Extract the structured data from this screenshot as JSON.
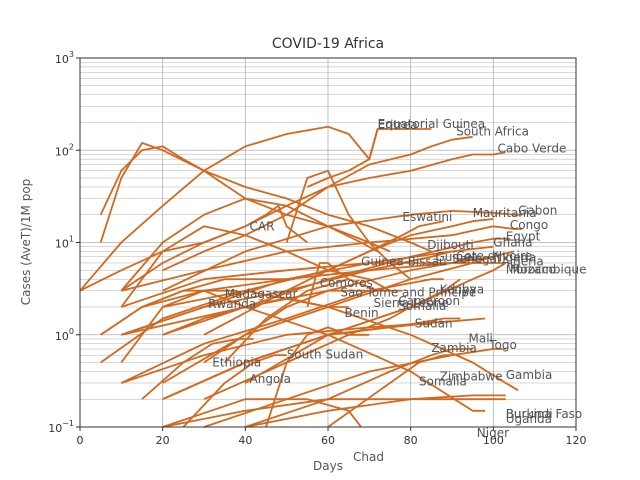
{
  "chart_data": {
    "type": "line",
    "title": "COVID-19  Africa",
    "xlabel": "Days",
    "ylabel": "Cases (AveT)/1M pop",
    "xlim": [
      0,
      120
    ],
    "ylim_log10": [
      -1,
      3
    ],
    "y_scale": "log",
    "grid": true,
    "line_color": "#d2691e",
    "x_ticks": [
      "0",
      "20",
      "40",
      "60",
      "80",
      "100",
      "120"
    ],
    "y_ticks": [
      {
        "base": "10",
        "exp": "−1"
      },
      {
        "base": "10",
        "exp": "0"
      },
      {
        "base": "10",
        "exp": "1"
      },
      {
        "base": "10",
        "exp": "2"
      },
      {
        "base": "10",
        "exp": "3"
      }
    ],
    "series": [
      {
        "name": "Equatorial Guinea",
        "x": [
          55,
          60,
          65,
          70,
          72,
          75,
          80,
          85
        ],
        "y": [
          40,
          50,
          60,
          80,
          170,
          170,
          170,
          170
        ]
      },
      {
        "name": "Eritrea",
        "x": [
          0,
          10,
          20,
          30,
          40,
          50,
          60,
          65,
          70,
          72
        ],
        "y": [
          3,
          10,
          25,
          60,
          110,
          150,
          180,
          150,
          80,
          170
        ]
      },
      {
        "name": "South Africa",
        "x": [
          0,
          10,
          20,
          30,
          40,
          50,
          60,
          70,
          80,
          85,
          90,
          95
        ],
        "y": [
          3,
          5,
          8,
          10,
          15,
          25,
          40,
          70,
          90,
          110,
          130,
          140
        ]
      },
      {
        "name": "Cabo Verde",
        "x": [
          20,
          30,
          40,
          50,
          60,
          70,
          80,
          90,
          95,
          100,
          103
        ],
        "y": [
          5,
          8,
          12,
          20,
          40,
          50,
          60,
          80,
          90,
          90,
          95
        ]
      },
      {
        "name": "Gabon",
        "x": [
          20,
          40,
          60,
          80,
          90,
          100,
          105,
          107
        ],
        "y": [
          3,
          8,
          15,
          20,
          22,
          21,
          20,
          20
        ]
      },
      {
        "name": "Mauritania",
        "x": [
          30,
          50,
          60,
          70,
          80,
          90,
          95,
          100
        ],
        "y": [
          1,
          3,
          5,
          8,
          12,
          15,
          17,
          18
        ]
      },
      {
        "name": "Congo",
        "x": [
          10,
          30,
          50,
          70,
          90,
          100,
          105,
          107
        ],
        "y": [
          3,
          5,
          8,
          10,
          12,
          15,
          14,
          14
        ]
      },
      {
        "name": "Eswatini",
        "x": [
          20,
          40,
          60,
          70,
          78,
          82,
          88
        ],
        "y": [
          2,
          3,
          5,
          8,
          12,
          15,
          17
        ]
      },
      {
        "name": "Egypt",
        "x": [
          10,
          40,
          60,
          80,
          95,
          100,
          104
        ],
        "y": [
          1,
          2,
          4,
          7,
          10,
          11,
          11
        ]
      },
      {
        "name": "CAR",
        "x": [
          10,
          20,
          30,
          40,
          45,
          48,
          50,
          55
        ],
        "y": [
          3,
          6,
          10,
          15,
          20,
          25,
          15,
          10
        ]
      },
      {
        "name": "Djibouti",
        "x": [
          5,
          10,
          15,
          20,
          25,
          30,
          40,
          50,
          60,
          70,
          80,
          85
        ],
        "y": [
          20,
          60,
          100,
          110,
          80,
          60,
          40,
          30,
          20,
          15,
          10,
          8
        ]
      },
      {
        "name": "Ghana",
        "x": [
          10,
          30,
          50,
          70,
          90,
          100
        ],
        "y": [
          1,
          2,
          4,
          6,
          8,
          9
        ]
      },
      {
        "name": "Cote d'Ivoire",
        "x": [
          20,
          40,
          60,
          80,
          90,
          95
        ],
        "y": [
          1,
          2,
          3,
          5,
          6,
          7
        ]
      },
      {
        "name": "Guinea-Bissau",
        "x": [
          5,
          10,
          15,
          20,
          30,
          40,
          50,
          60,
          70,
          75
        ],
        "y": [
          10,
          50,
          120,
          100,
          60,
          30,
          20,
          15,
          10,
          8
        ]
      },
      {
        "name": "Guinea",
        "x": [
          10,
          20,
          30,
          40,
          50,
          60,
          68,
          72
        ],
        "y": [
          3,
          10,
          20,
          30,
          25,
          15,
          10,
          8
        ]
      },
      {
        "name": "Senegal",
        "x": [
          10,
          30,
          50,
          70,
          85,
          90
        ],
        "y": [
          1,
          2,
          3,
          5,
          7,
          8
        ]
      },
      {
        "name": "Algeria",
        "x": [
          15,
          30,
          50,
          70,
          90,
          100,
          105
        ],
        "y": [
          2,
          3,
          4,
          5,
          6,
          7,
          8
        ]
      },
      {
        "name": "Nigeria",
        "x": [
          20,
          40,
          60,
          80,
          95,
          100
        ],
        "y": [
          0.3,
          1,
          2,
          4,
          6,
          7
        ]
      },
      {
        "name": "Morocco",
        "x": [
          10,
          30,
          50,
          70,
          90,
          100,
          103
        ],
        "y": [
          2,
          4,
          5,
          6,
          6,
          6,
          6
        ]
      },
      {
        "name": "Mozambique",
        "x": [
          40,
          60,
          80,
          95,
          100,
          103
        ],
        "y": [
          0.3,
          1,
          2,
          4,
          5,
          6
        ]
      },
      {
        "name": "Comoros",
        "x": [
          55,
          58,
          60,
          62,
          65
        ],
        "y": [
          2,
          6,
          6,
          5,
          4
        ]
      },
      {
        "name": "Madagascar",
        "x": [
          5,
          15,
          25,
          35,
          42,
          48,
          52
        ],
        "y": [
          1,
          2,
          3,
          4,
          4,
          4,
          4
        ]
      },
      {
        "name": "Sao Tome and Principe",
        "x": [
          50,
          55,
          60,
          65,
          70,
          75,
          80
        ],
        "y": [
          10,
          50,
          60,
          20,
          10,
          6,
          4
        ]
      },
      {
        "name": "Kenya",
        "x": [
          10,
          30,
          50,
          70,
          85,
          88
        ],
        "y": [
          0.3,
          0.8,
          1.5,
          3,
          4,
          4
        ]
      },
      {
        "name": "Libya",
        "x": [
          20,
          40,
          60,
          80,
          88,
          92
        ],
        "y": [
          0.2,
          0.5,
          1,
          2,
          3,
          4
        ]
      },
      {
        "name": "Rwanda",
        "x": [
          5,
          15,
          25,
          35,
          38
        ],
        "y": [
          1,
          2,
          3,
          3,
          3
        ]
      },
      {
        "name": "Sierra Leone",
        "x": [
          30,
          40,
          50,
          60,
          68,
          72
        ],
        "y": [
          0.5,
          1,
          2,
          3,
          3,
          3
        ]
      },
      {
        "name": "Cameroon",
        "x": [
          10,
          20,
          30,
          40,
          50,
          60,
          70,
          75
        ],
        "y": [
          2,
          8,
          15,
          12,
          8,
          5,
          4,
          3
        ]
      },
      {
        "name": "Somalia",
        "x": [
          35,
          45,
          55,
          65,
          72,
          78
        ],
        "y": [
          0.5,
          1.5,
          3,
          4,
          3,
          3
        ]
      },
      {
        "name": "Benin",
        "x": [
          20,
          30,
          40,
          50,
          60,
          65
        ],
        "y": [
          1,
          1.5,
          2,
          2.5,
          2,
          2
        ]
      },
      {
        "name": "Sudan",
        "x": [
          30,
          50,
          65,
          75,
          80,
          82
        ],
        "y": [
          0.2,
          0.5,
          1,
          1.5,
          2,
          2
        ]
      },
      {
        "name": "Mali",
        "x": [
          20,
          40,
          60,
          80,
          88,
          92
        ],
        "y": [
          0.2,
          0.5,
          1,
          1.3,
          1.5,
          1.5
        ]
      },
      {
        "name": "Togo",
        "x": [
          10,
          30,
          50,
          70,
          90,
          98
        ],
        "y": [
          0.3,
          0.6,
          1,
          1.2,
          1.4,
          1.5
        ]
      },
      {
        "name": "Zambia",
        "x": [
          20,
          40,
          60,
          75,
          82,
          85
        ],
        "y": [
          0.2,
          0.5,
          1,
          1.2,
          1.3,
          1.3
        ]
      },
      {
        "name": "South Sudan",
        "x": [
          45,
          50,
          55,
          60,
          65,
          70
        ],
        "y": [
          0.1,
          0.5,
          1,
          1.2,
          1,
          1
        ]
      },
      {
        "name": "Ethiopia",
        "x": [
          15,
          25,
          32,
          38,
          42
        ],
        "y": [
          0.2,
          0.5,
          0.8,
          0.9,
          0.9
        ]
      },
      {
        "name": "Angola",
        "x": [
          25,
          35,
          42,
          47,
          50
        ],
        "y": [
          0.1,
          0.3,
          0.5,
          0.6,
          0.6
        ]
      },
      {
        "name": "Zimbabwe",
        "x": [
          40,
          60,
          75,
          85,
          90,
          95
        ],
        "y": [
          0.1,
          0.2,
          0.4,
          0.6,
          0.7,
          0.7
        ]
      },
      {
        "name": "Gambia",
        "x": [
          30,
          50,
          70,
          90,
          100,
          103
        ],
        "y": [
          0.1,
          0.2,
          0.4,
          0.6,
          0.7,
          0.7
        ]
      },
      {
        "name": "Somalia (2)",
        "x": [
          60,
          75,
          82,
          88,
          90
        ],
        "y": [
          0.1,
          0.3,
          0.5,
          0.6,
          0.6
        ]
      },
      {
        "name": "Burkina Faso",
        "x": [
          5,
          20,
          40,
          60,
          80,
          95,
          103,
          106
        ],
        "y": [
          0.5,
          1.5,
          3,
          2,
          1,
          0.5,
          0.3,
          0.25
        ]
      },
      {
        "name": "Burundi",
        "x": [
          40,
          60,
          80,
          95,
          103
        ],
        "y": [
          0.1,
          0.15,
          0.2,
          0.22,
          0.22
        ]
      },
      {
        "name": "Uganda",
        "x": [
          20,
          40,
          60,
          80,
          95,
          103
        ],
        "y": [
          0.1,
          0.15,
          0.2,
          0.2,
          0.2,
          0.2
        ]
      },
      {
        "name": "Niger",
        "x": [
          10,
          20,
          30,
          40,
          60,
          80,
          95,
          98
        ],
        "y": [
          0.5,
          2,
          3,
          2,
          1,
          0.4,
          0.15,
          0.15
        ]
      },
      {
        "name": "Chad",
        "x": [
          20,
          40,
          55,
          65,
          68
        ],
        "y": [
          0.1,
          0.2,
          0.2,
          0.15,
          0.1
        ]
      }
    ],
    "labels": [
      {
        "text": "Equatorial Guinea",
        "x": 72,
        "y": 175
      },
      {
        "text": "Eritrea",
        "x": 72,
        "y": 170
      },
      {
        "text": "South Africa",
        "x": 91,
        "y": 145
      },
      {
        "text": "Cabo Verde",
        "x": 101,
        "y": 95
      },
      {
        "text": "Gabon",
        "x": 106,
        "y": 20
      },
      {
        "text": "Mauritania",
        "x": 95,
        "y": 19
      },
      {
        "text": "Congo",
        "x": 104,
        "y": 14
      },
      {
        "text": "Eswatini",
        "x": 78,
        "y": 17
      },
      {
        "text": "Egypt",
        "x": 103,
        "y": 10.5
      },
      {
        "text": "CAR",
        "x": 41,
        "y": 13.5
      },
      {
        "text": "Djibouti",
        "x": 84,
        "y": 8.5
      },
      {
        "text": "Ghana",
        "x": 100,
        "y": 9
      },
      {
        "text": "Cote d'Ivoire",
        "x": 91,
        "y": 6.5
      },
      {
        "text": "Guinea-Bissau",
        "x": 68,
        "y": 5.6
      },
      {
        "text": "Guinea",
        "x": 86,
        "y": 6.3
      },
      {
        "text": "Senegal",
        "x": 90,
        "y": 6
      },
      {
        "text": "Algeria",
        "x": 102,
        "y": 5.6
      },
      {
        "text": "Nigeria",
        "x": 100,
        "y": 6.2
      },
      {
        "text": "Morocco",
        "x": 103,
        "y": 4.6
      },
      {
        "text": "Mozambique",
        "x": 104,
        "y": 4.6
      },
      {
        "text": "Comoros",
        "x": 58,
        "y": 3.3
      },
      {
        "text": "Madagascar",
        "x": 35,
        "y": 2.5
      },
      {
        "text": "Sao Tome and Principe",
        "x": 63,
        "y": 2.6
      },
      {
        "text": "Kenya",
        "x": 87,
        "y": 2.8
      },
      {
        "text": "Libya",
        "x": 90,
        "y": 2.8
      },
      {
        "text": "Rwanda",
        "x": 31,
        "y": 1.95
      },
      {
        "text": "Sierra Leone",
        "x": 71,
        "y": 2
      },
      {
        "text": "Cameroon",
        "x": 77,
        "y": 2.1
      },
      {
        "text": "Somalia",
        "x": 77,
        "y": 1.85
      },
      {
        "text": "Benin",
        "x": 64,
        "y": 1.55
      },
      {
        "text": "Sudan",
        "x": 81,
        "y": 1.2
      },
      {
        "text": "Mali",
        "x": 94,
        "y": 0.82
      },
      {
        "text": "Togo",
        "x": 99,
        "y": 0.7
      },
      {
        "text": "Zambia",
        "x": 85,
        "y": 0.65
      },
      {
        "text": "South Sudan",
        "x": 50,
        "y": 0.55
      },
      {
        "text": "Ethiopia",
        "x": 32,
        "y": 0.45
      },
      {
        "text": "Angola",
        "x": 41,
        "y": 0.3
      },
      {
        "text": "Zimbabwe",
        "x": 87,
        "y": 0.32
      },
      {
        "text": "Gambia",
        "x": 103,
        "y": 0.33
      },
      {
        "text": "Somalia",
        "x": 82,
        "y": 0.28
      },
      {
        "text": "Burkina Faso",
        "x": 103,
        "y": 0.125
      },
      {
        "text": "Burundi",
        "x": 103,
        "y": 0.125
      },
      {
        "text": "Uganda",
        "x": 103,
        "y": 0.11
      },
      {
        "text": "Niger",
        "x": 96,
        "y": 0.078
      }
    ],
    "outside_label": "Chad"
  }
}
